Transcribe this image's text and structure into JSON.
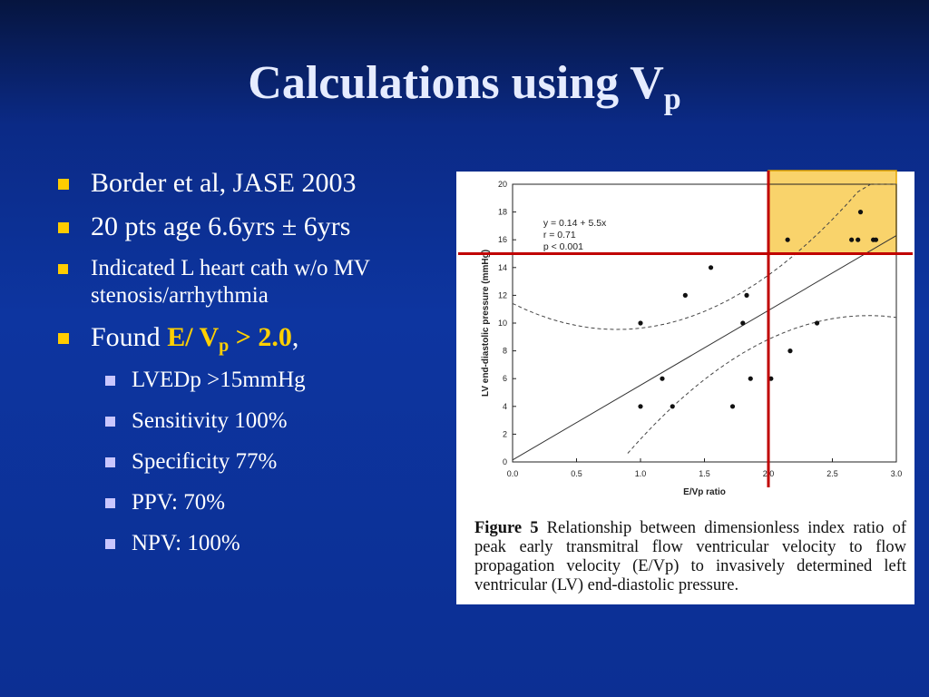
{
  "slide": {
    "title_main": "Calculations using V",
    "title_sub": "p",
    "bullets": [
      {
        "text": "Border et al, JASE 2003"
      },
      {
        "text": "20 pts age 6.6yrs ± 6yrs"
      },
      {
        "text": "Indicated L heart cath w/o MV stenosis/arrhythmia"
      },
      {
        "prefix": "Found ",
        "hl_main": "E/ V",
        "hl_sub": "p",
        "hl_end": " > 2.0",
        "suffix": ","
      }
    ],
    "sub_bullets": [
      "LVEDp >15mmHg",
      "Sensitivity 100%",
      "Specificity 77%",
      "PPV: 70%",
      "NPV: 100%"
    ],
    "colors": {
      "bullet": "#ffcc00",
      "sub_bullet": "#c9c6ff",
      "highlight": "#ffd000",
      "marker_line": "#c00000",
      "highlight_box": "#f9d36b"
    }
  },
  "figure": {
    "caption_label": "Figure 5",
    "caption_text": " Relationship between dimensionless index ratio of peak early transmitral flow ventricular velocity to flow propagation velocity (E/Vp) to invasively determined left ventricular (LV) end-diastolic pressure."
  },
  "chart_data": {
    "type": "scatter",
    "xlabel": "E/Vp ratio",
    "ylabel": "LV end-diastolic pressure (mmHg)",
    "xlim": [
      0,
      3.0
    ],
    "ylim": [
      0,
      20
    ],
    "xticks": [
      "0.0",
      "0.5",
      "1.0",
      "1.5",
      "2.0",
      "2.5",
      "3.0"
    ],
    "yticks": [
      "0",
      "2",
      "4",
      "6",
      "8",
      "10",
      "12",
      "14",
      "16",
      "18",
      "20"
    ],
    "annotations": [
      "y = 0.14 + 5.5x",
      "r = 0.71",
      "p < 0.001"
    ],
    "regression": {
      "intercept": 0.14,
      "slope": 5.5
    },
    "points": [
      {
        "x": 1.0,
        "y": 10
      },
      {
        "x": 1.0,
        "y": 4
      },
      {
        "x": 1.17,
        "y": 6
      },
      {
        "x": 1.25,
        "y": 4
      },
      {
        "x": 1.35,
        "y": 12
      },
      {
        "x": 1.55,
        "y": 14
      },
      {
        "x": 1.72,
        "y": 4
      },
      {
        "x": 1.8,
        "y": 10
      },
      {
        "x": 1.83,
        "y": 12
      },
      {
        "x": 1.86,
        "y": 6
      },
      {
        "x": 2.02,
        "y": 6
      },
      {
        "x": 2.15,
        "y": 16
      },
      {
        "x": 2.17,
        "y": 8
      },
      {
        "x": 2.38,
        "y": 10
      },
      {
        "x": 2.65,
        "y": 16
      },
      {
        "x": 2.7,
        "y": 16
      },
      {
        "x": 2.72,
        "y": 18
      },
      {
        "x": 2.82,
        "y": 16
      },
      {
        "x": 2.84,
        "y": 16
      }
    ],
    "threshold_lines": {
      "x": 2.0,
      "y": 15
    }
  }
}
